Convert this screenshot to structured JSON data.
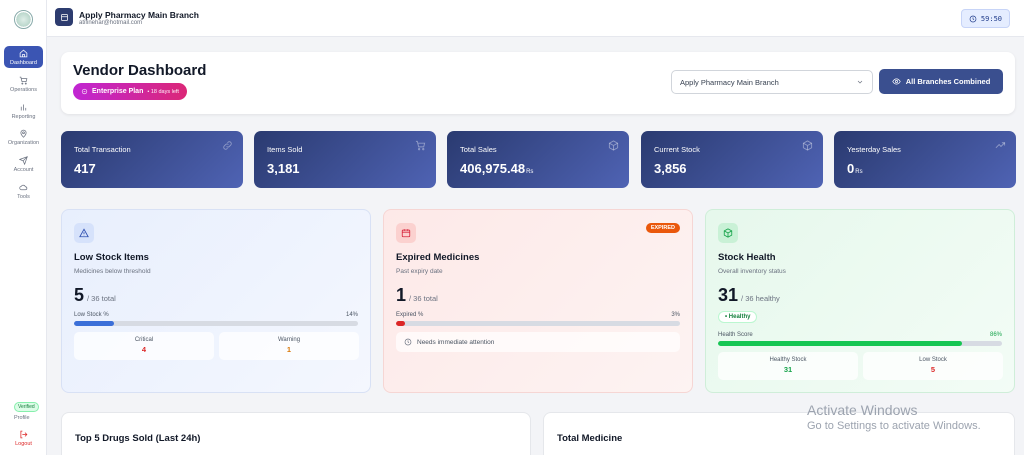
{
  "sidebar": {
    "items": [
      {
        "label": "Dashboard",
        "icon": "home-icon"
      },
      {
        "label": "Operations",
        "icon": "cart-icon"
      },
      {
        "label": "Reporting",
        "icon": "bar-chart-icon"
      },
      {
        "label": "Organization",
        "icon": "map-pin-icon"
      },
      {
        "label": "Account",
        "icon": "send-icon"
      },
      {
        "label": "Tools",
        "icon": "cloud-icon"
      }
    ],
    "verified": "Verified",
    "profile": "Profile",
    "logout": "Logout"
  },
  "topbar": {
    "store_name": "Apply Pharmacy Main Branch",
    "email": "atifinehar@hotmail.com",
    "timer": "59:50"
  },
  "header": {
    "title": "Vendor Dashboard",
    "plan": "Enterprise Plan",
    "days_left": "• 18 days left",
    "branch_selected": "Apply Pharmacy Main Branch",
    "combined_button": "All Branches Combined"
  },
  "stats": [
    {
      "label": "Total Transaction",
      "value": "417",
      "unit": "",
      "icon": "link-icon"
    },
    {
      "label": "Items Sold",
      "value": "3,181",
      "unit": "",
      "icon": "cart-icon"
    },
    {
      "label": "Total Sales",
      "value": "406,975.48",
      "unit": "Rs",
      "icon": "box-icon"
    },
    {
      "label": "Current Stock",
      "value": "3,856",
      "unit": "",
      "icon": "box-icon"
    },
    {
      "label": "Yesterday Sales",
      "value": "0",
      "unit": "Rs",
      "icon": "trend-up-icon"
    }
  ],
  "low_stock": {
    "title": "Low Stock Items",
    "subtitle": "Medicines below threshold",
    "count": "5",
    "total": "/ 36 total",
    "bar_label": "Low Stock %",
    "pct_text": "14%",
    "pct": 14,
    "critical_label": "Critical",
    "critical_value": "4",
    "warning_label": "Warning",
    "warning_value": "1"
  },
  "expired": {
    "badge": "EXPIRED",
    "title": "Expired Medicines",
    "subtitle": "Past expiry date",
    "count": "1",
    "total": "/ 36 total",
    "bar_label": "Expired %",
    "pct_text": "3%",
    "pct": 3,
    "attention": "Needs immediate attention"
  },
  "health": {
    "title": "Stock Health",
    "subtitle": "Overall inventory status",
    "count": "31",
    "total": "/ 36 healthy",
    "status": "• Healthy",
    "bar_label": "Health Score",
    "pct_text": "86%",
    "pct": 86,
    "healthy_label": "Healthy Stock",
    "healthy_value": "31",
    "low_label": "Low Stock",
    "low_value": "5"
  },
  "bottom": {
    "top_drugs": "Top 5 Drugs Sold (Last 24h)",
    "total_medicine": "Total Medicine"
  },
  "watermark": {
    "line1": "Activate Windows",
    "line2": "Go to Settings to activate Windows."
  },
  "colors": {
    "accent": "#3b55b3",
    "stat_card": "#2a3a70",
    "critical": "#dc2626",
    "warning": "#d97706",
    "healthy": "#16a34a"
  }
}
